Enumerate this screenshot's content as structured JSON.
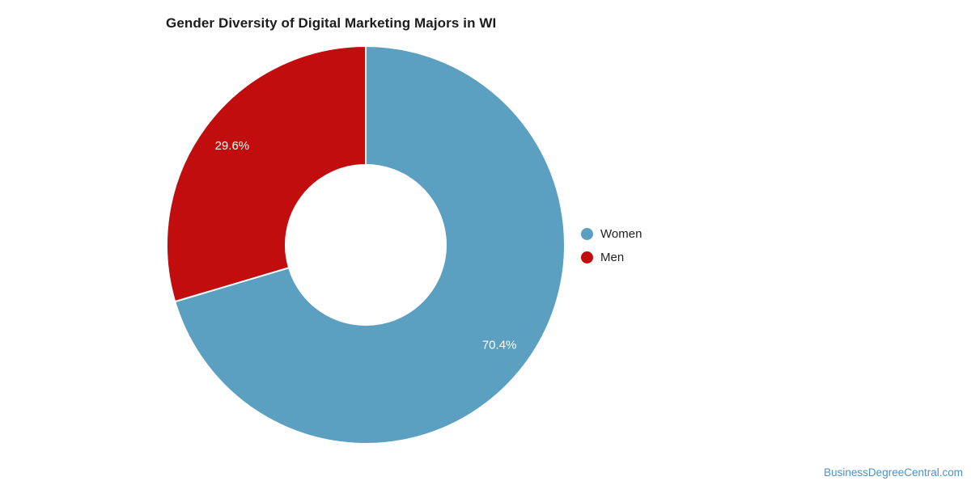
{
  "header": {
    "title": "Gender Diversity of Digital Marketing Majors in WI"
  },
  "chart_data": {
    "type": "pie",
    "donut": true,
    "title": "Gender Diversity of Digital Marketing Majors in WI",
    "categories": [
      "Women",
      "Men"
    ],
    "values": [
      70.4,
      29.6
    ],
    "slice_labels": [
      "70.4%",
      "29.6%"
    ],
    "colors": [
      "#5ba0c0",
      "#c10d0d"
    ],
    "slice_label_color": "#ffffff",
    "slice_border_color": "#ffffff",
    "start_angle_deg": 0,
    "direction": "clockwise",
    "legend_position": "right"
  },
  "legend": {
    "items": [
      {
        "label": "Women",
        "color": "#5ba0c0"
      },
      {
        "label": "Men",
        "color": "#c10d0d"
      }
    ]
  },
  "footer": {
    "watermark_text": "BusinessDegreeCentral.com"
  }
}
